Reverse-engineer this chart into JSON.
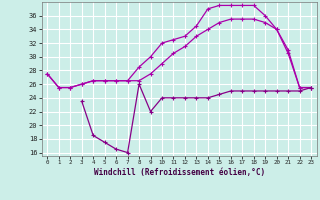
{
  "xlabel": "Windchill (Refroidissement éolien,°C)",
  "xlim": [
    -0.5,
    23.5
  ],
  "ylim": [
    15.5,
    38.0
  ],
  "yticks": [
    16,
    18,
    20,
    22,
    24,
    26,
    28,
    30,
    32,
    34,
    36
  ],
  "xticks": [
    0,
    1,
    2,
    3,
    4,
    5,
    6,
    7,
    8,
    9,
    10,
    11,
    12,
    13,
    14,
    15,
    16,
    17,
    18,
    19,
    20,
    21,
    22,
    23
  ],
  "bg_color": "#cceee8",
  "line_color1": "#aa00aa",
  "line_color2": "#880088",
  "grid_color": "#ffffff",
  "line1_x": [
    0,
    1,
    2,
    3,
    4,
    5,
    6,
    7,
    8,
    9,
    10,
    11,
    12,
    13,
    14,
    15,
    16,
    17,
    18,
    19,
    20,
    21,
    22,
    23
  ],
  "line1_y": [
    27.5,
    25.5,
    25.5,
    26.0,
    26.5,
    26.5,
    26.5,
    26.5,
    26.5,
    27.5,
    29.0,
    30.5,
    31.5,
    33.0,
    34.0,
    35.0,
    35.5,
    35.5,
    35.5,
    35.0,
    34.0,
    30.5,
    25.5,
    25.5
  ],
  "line2_x": [
    0,
    1,
    2,
    3,
    4,
    5,
    6,
    7,
    8,
    9,
    10,
    11,
    12,
    13,
    14,
    15,
    16,
    17,
    18,
    19,
    20,
    21,
    22,
    23
  ],
  "line2_y": [
    27.5,
    25.5,
    25.5,
    26.0,
    26.5,
    26.5,
    26.5,
    26.5,
    28.5,
    30.0,
    32.0,
    32.5,
    33.0,
    34.5,
    37.0,
    37.5,
    37.5,
    37.5,
    37.5,
    36.0,
    34.0,
    31.0,
    25.5,
    25.5
  ],
  "line3_x": [
    3,
    4,
    5,
    6,
    7,
    8,
    9,
    10,
    11,
    12,
    13,
    14,
    15,
    16,
    17,
    18,
    19,
    20,
    21,
    22,
    23
  ],
  "line3_y": [
    23.5,
    18.5,
    17.5,
    16.5,
    16.0,
    26.0,
    22.0,
    24.0,
    24.0,
    24.0,
    24.0,
    24.0,
    24.5,
    25.0,
    25.0,
    25.0,
    25.0,
    25.0,
    25.0,
    25.0,
    25.5
  ]
}
